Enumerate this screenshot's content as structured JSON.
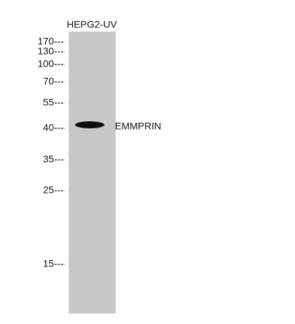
{
  "lane": {
    "label": "HEPG2-UV"
  },
  "markers": [
    {
      "label": "170"
    },
    {
      "label": "130"
    },
    {
      "label": "100"
    },
    {
      "label": "70"
    },
    {
      "label": "55"
    },
    {
      "label": "40"
    },
    {
      "label": "35"
    },
    {
      "label": "25"
    },
    {
      "label": "15"
    }
  ],
  "band": {
    "label": "EMMPRIN"
  }
}
